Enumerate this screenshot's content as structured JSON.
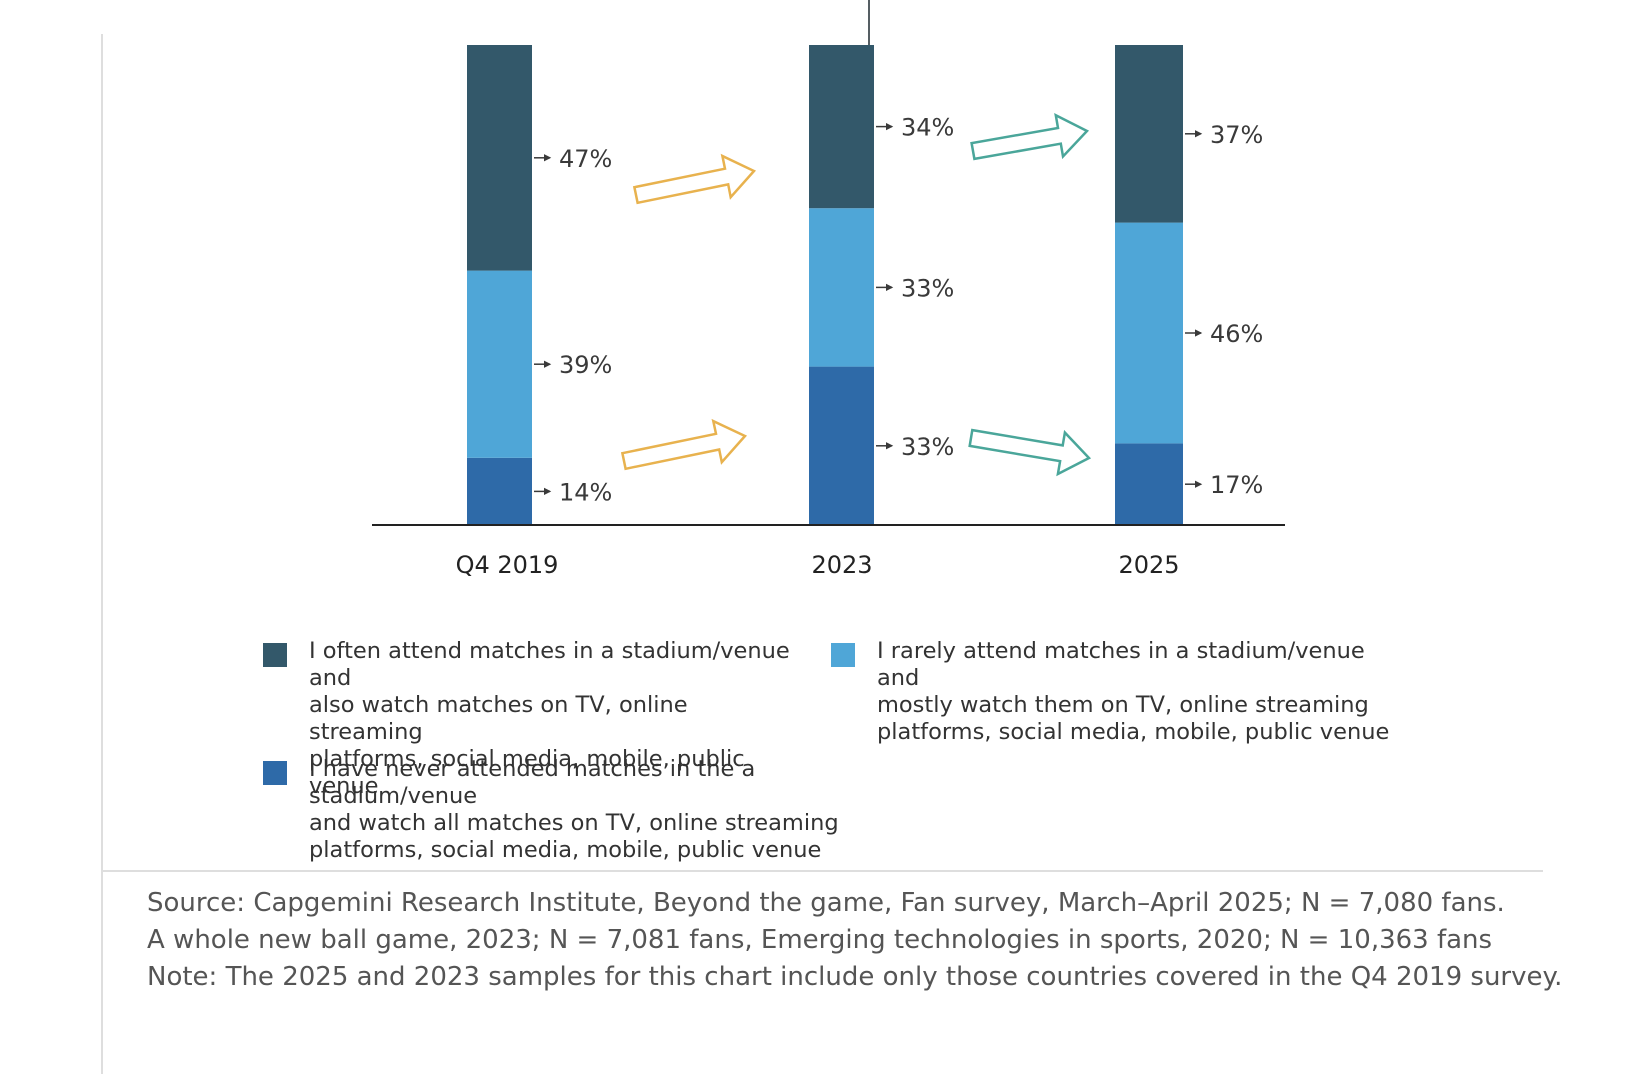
{
  "chart_data": {
    "type": "bar",
    "stacked": true,
    "categories": [
      "Q4 2019",
      "2023",
      "2025"
    ],
    "series": [
      {
        "name": "I have never attended matches in the a stadium/venue and watch all matches on TV, online streaming platforms, social media, mobile, public venue",
        "values": [
          14,
          33,
          17
        ],
        "color": "#2e6aa8"
      },
      {
        "name": "I rarely attend matches in a stadium/venue and mostly watch them on TV, online streaming platforms, social media, mobile, public venue",
        "values": [
          39,
          33,
          46
        ],
        "color": "#4fa6d7"
      },
      {
        "name": "I often attend matches in a stadium/venue and also watch matches on TV, online streaming platforms, social media, mobile, public venue",
        "values": [
          47,
          34,
          37
        ],
        "color": "#33586a"
      }
    ],
    "labels": {
      "Q4 2019": [
        "14%",
        "39%",
        "47%"
      ],
      "2023": [
        "33%",
        "33%",
        "34%"
      ],
      "2025": [
        "17%",
        "46%",
        "37%"
      ]
    },
    "ylim": [
      0,
      100
    ],
    "grid": false,
    "legend_position": "bottom",
    "arrow_colors": {
      "first_interval": "#e8b24e",
      "second_interval": "#4aa69a"
    }
  },
  "legend": {
    "items": [
      {
        "text": "I often attend matches in a stadium/venue and\nalso watch matches on TV, online streaming\nplatforms, social media, mobile, public venue",
        "color": "#33586a"
      },
      {
        "text": "I rarely attend matches in a stadium/venue and\nmostly watch them on TV, online streaming\nplatforms, social media, mobile, public venue",
        "color": "#4fa6d7"
      },
      {
        "text": "I have never attended matches in the a stadium/venue\nand watch all matches on TV, online streaming\nplatforms, social media, mobile, public venue",
        "color": "#2e6aa8"
      }
    ]
  },
  "source": {
    "line1": "Source: Capgemini Research Institute, Beyond the game, Fan survey, March–April 2025; N = 7,080 fans.",
    "line2": "A whole new ball game, 2023; N = 7,081 fans, Emerging technologies in sports, 2020; N = 10,363 fans",
    "line3": "Note: The 2025 and 2023 samples for this chart include only those countries covered in the Q4 2019 survey."
  }
}
